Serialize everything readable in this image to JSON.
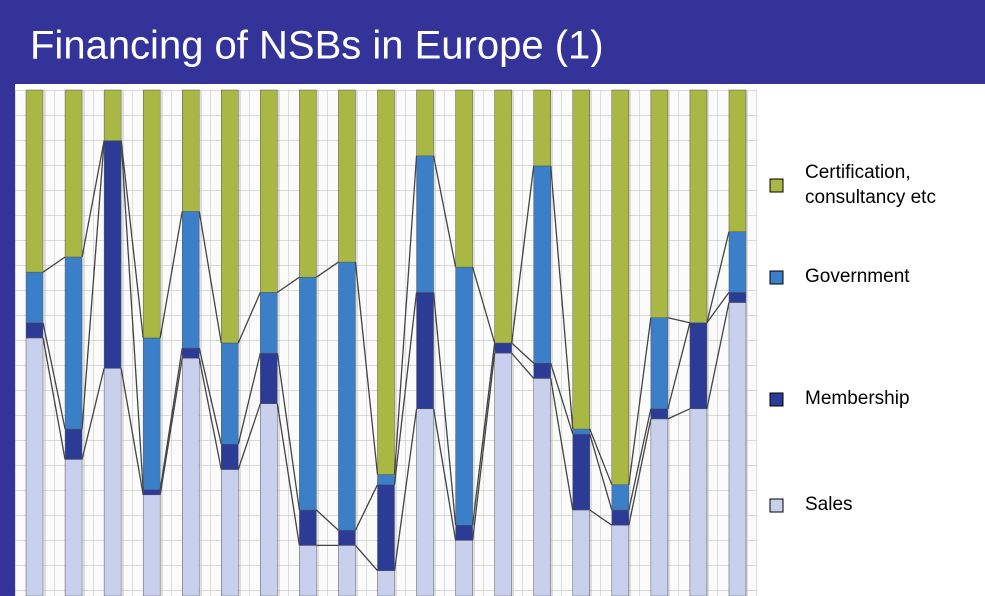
{
  "chart_data": {
    "type": "bar",
    "stacked": true,
    "title": "Financing of NSBs in Europe (1)",
    "categories": [
      null,
      null,
      null,
      null,
      null,
      null,
      null,
      null,
      null,
      null,
      null,
      null,
      null,
      null,
      null,
      null,
      null,
      null,
      null
    ],
    "series": [
      {
        "name": "Certification, consultancy etc",
        "color": "#a9b845",
        "values": [
          36,
          33,
          10,
          49,
          24,
          50,
          40,
          37,
          34,
          76,
          13,
          35,
          50,
          15,
          67,
          78,
          45,
          46,
          28
        ]
      },
      {
        "name": "Government",
        "color": "#3a7fc8",
        "values": [
          10,
          34,
          0,
          30,
          27,
          20,
          12,
          46,
          53,
          2,
          27,
          51,
          0,
          39,
          1,
          5,
          18,
          0,
          12
        ]
      },
      {
        "name": "Membership",
        "color": "#2c3c96",
        "values": [
          3,
          6,
          45,
          1,
          2,
          5,
          10,
          7,
          3,
          17,
          23,
          3,
          2,
          3,
          15,
          3,
          2,
          17,
          2
        ]
      },
      {
        "name": "Sales",
        "color": "#c8d0ee",
        "values": [
          51,
          27,
          45,
          20,
          47,
          25,
          38,
          10,
          10,
          5,
          37,
          11,
          48,
          43,
          17,
          14,
          35,
          37,
          58
        ]
      }
    ],
    "ylim": [
      0,
      100
    ]
  }
}
